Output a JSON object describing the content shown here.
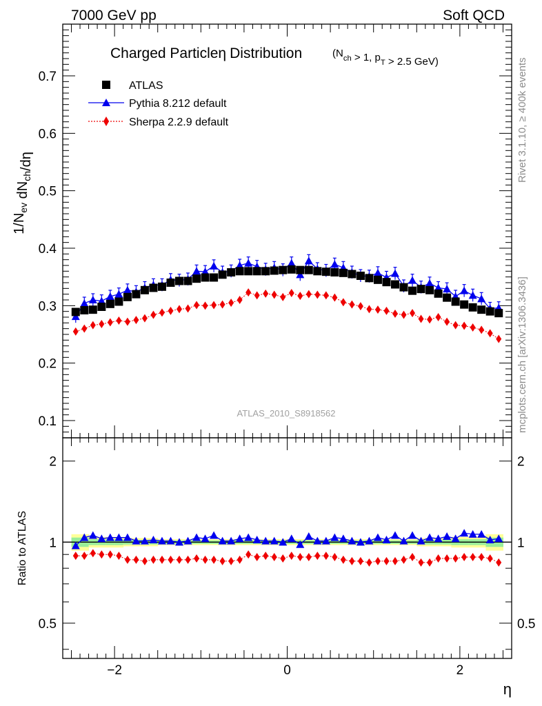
{
  "header": {
    "left": "7000 GeV pp",
    "right": "Soft QCD"
  },
  "side_labels": {
    "rivet": "Rivet 3.1.10, ≥ 400k events",
    "mcplots": "mcplots.cern.ch [arXiv:1306.3436]"
  },
  "chart_data": {
    "type": "scatter",
    "title_main": "Charged Particle",
    "title_eta": "η",
    "title_rest": "Distribution",
    "title_cond": "(N_ch > 1, p_T > 2.5 GeV)",
    "watermark": "ATLAS_2010_S8918562",
    "xlabel": "η",
    "ylabel": "1/N_ev dN_ch/dη",
    "ratio_ylabel": "Ratio to ATLAS",
    "xlim": [
      -2.6,
      2.6
    ],
    "ylim": [
      0.07,
      0.79
    ],
    "ratio_ylim": [
      0.37,
      2.44
    ],
    "x_ticks": [
      "−2",
      "0",
      "2"
    ],
    "y_ticks": [
      "0.1",
      "0.2",
      "0.3",
      "0.4",
      "0.5",
      "0.6",
      "0.7"
    ],
    "ratio_ticks": [
      "0.5",
      "1",
      "2"
    ],
    "legend_position": "top-left",
    "legend": [
      "ATLAS",
      "Pythia 8.212 default",
      "Sherpa 2.2.9 default"
    ],
    "x": [
      -2.45,
      -2.35,
      -2.25,
      -2.15,
      -2.05,
      -1.95,
      -1.85,
      -1.75,
      -1.65,
      -1.55,
      -1.45,
      -1.35,
      -1.25,
      -1.15,
      -1.05,
      -0.95,
      -0.85,
      -0.75,
      -0.65,
      -0.55,
      -0.45,
      -0.35,
      -0.25,
      -0.15,
      -0.05,
      0.05,
      0.15,
      0.25,
      0.35,
      0.45,
      0.55,
      0.65,
      0.75,
      0.85,
      0.95,
      1.05,
      1.15,
      1.25,
      1.35,
      1.45,
      1.55,
      1.65,
      1.75,
      1.85,
      1.95,
      2.05,
      2.15,
      2.25,
      2.35,
      2.45
    ],
    "series": [
      {
        "name": "ATLAS",
        "color": "#000000",
        "marker": "square",
        "values": [
          0.289,
          0.292,
          0.293,
          0.298,
          0.303,
          0.307,
          0.315,
          0.32,
          0.327,
          0.331,
          0.333,
          0.34,
          0.343,
          0.343,
          0.347,
          0.349,
          0.349,
          0.354,
          0.358,
          0.36,
          0.36,
          0.36,
          0.36,
          0.361,
          0.362,
          0.363,
          0.362,
          0.362,
          0.36,
          0.359,
          0.358,
          0.357,
          0.355,
          0.352,
          0.348,
          0.345,
          0.341,
          0.337,
          0.332,
          0.326,
          0.329,
          0.327,
          0.321,
          0.314,
          0.307,
          0.302,
          0.297,
          0.293,
          0.29,
          0.287
        ]
      },
      {
        "name": "Pythia 8.212 default",
        "color": "#0000ee",
        "marker": "triangle",
        "values": [
          0.281,
          0.304,
          0.31,
          0.308,
          0.316,
          0.32,
          0.327,
          0.324,
          0.331,
          0.336,
          0.336,
          0.345,
          0.344,
          0.346,
          0.36,
          0.359,
          0.369,
          0.358,
          0.36,
          0.37,
          0.374,
          0.368,
          0.363,
          0.366,
          0.362,
          0.374,
          0.354,
          0.378,
          0.364,
          0.361,
          0.372,
          0.366,
          0.358,
          0.352,
          0.351,
          0.357,
          0.349,
          0.356,
          0.334,
          0.344,
          0.332,
          0.339,
          0.331,
          0.329,
          0.316,
          0.326,
          0.318,
          0.312,
          0.295,
          0.296
        ]
      },
      {
        "name": "Sherpa 2.2.9 default",
        "color": "#ee0000",
        "marker": "diamond",
        "values": [
          0.255,
          0.26,
          0.266,
          0.268,
          0.271,
          0.274,
          0.272,
          0.275,
          0.278,
          0.284,
          0.288,
          0.291,
          0.294,
          0.295,
          0.301,
          0.3,
          0.301,
          0.302,
          0.305,
          0.31,
          0.323,
          0.318,
          0.321,
          0.319,
          0.315,
          0.322,
          0.317,
          0.32,
          0.319,
          0.318,
          0.314,
          0.306,
          0.302,
          0.299,
          0.294,
          0.293,
          0.291,
          0.286,
          0.284,
          0.287,
          0.277,
          0.276,
          0.28,
          0.272,
          0.266,
          0.265,
          0.262,
          0.258,
          0.252,
          0.242
        ]
      }
    ],
    "ratio_series": [
      {
        "name": "Pythia 8.212 default",
        "values": [
          0.97,
          1.04,
          1.06,
          1.03,
          1.04,
          1.04,
          1.04,
          1.01,
          1.01,
          1.02,
          1.01,
          1.01,
          1.0,
          1.01,
          1.04,
          1.03,
          1.06,
          1.01,
          1.01,
          1.03,
          1.04,
          1.02,
          1.01,
          1.01,
          1.0,
          1.03,
          0.98,
          1.05,
          1.01,
          1.01,
          1.04,
          1.03,
          1.01,
          1.0,
          1.01,
          1.04,
          1.02,
          1.06,
          1.01,
          1.06,
          1.01,
          1.04,
          1.03,
          1.05,
          1.03,
          1.08,
          1.07,
          1.07,
          1.02,
          1.03
        ]
      },
      {
        "name": "Sherpa 2.2.9 default",
        "values": [
          0.89,
          0.89,
          0.91,
          0.9,
          0.9,
          0.89,
          0.86,
          0.86,
          0.85,
          0.86,
          0.86,
          0.86,
          0.86,
          0.86,
          0.87,
          0.86,
          0.86,
          0.85,
          0.85,
          0.86,
          0.9,
          0.88,
          0.89,
          0.88,
          0.87,
          0.89,
          0.88,
          0.88,
          0.89,
          0.89,
          0.88,
          0.86,
          0.85,
          0.85,
          0.84,
          0.85,
          0.85,
          0.85,
          0.86,
          0.88,
          0.84,
          0.84,
          0.87,
          0.87,
          0.87,
          0.88,
          0.88,
          0.88,
          0.87,
          0.84
        ]
      }
    ],
    "ratio_bands": {
      "green_halfwidth": [
        0.04,
        0.04,
        0.025,
        0.025,
        0.025,
        0.025,
        0.02,
        0.02,
        0.02,
        0.02,
        0.015,
        0.015,
        0.015,
        0.015,
        0.015,
        0.015,
        0.015,
        0.015,
        0.015,
        0.015,
        0.015,
        0.015,
        0.015,
        0.015,
        0.015,
        0.015,
        0.015,
        0.015,
        0.015,
        0.015,
        0.015,
        0.015,
        0.015,
        0.015,
        0.015,
        0.015,
        0.015,
        0.015,
        0.015,
        0.015,
        0.02,
        0.02,
        0.02,
        0.02,
        0.025,
        0.025,
        0.025,
        0.025,
        0.04,
        0.04
      ],
      "yellow_halfwidth": [
        0.07,
        0.07,
        0.045,
        0.045,
        0.045,
        0.045,
        0.035,
        0.035,
        0.035,
        0.035,
        0.025,
        0.025,
        0.025,
        0.025,
        0.025,
        0.025,
        0.025,
        0.025,
        0.025,
        0.025,
        0.025,
        0.025,
        0.025,
        0.025,
        0.025,
        0.025,
        0.025,
        0.025,
        0.025,
        0.025,
        0.025,
        0.025,
        0.025,
        0.025,
        0.025,
        0.025,
        0.025,
        0.025,
        0.025,
        0.025,
        0.035,
        0.035,
        0.035,
        0.035,
        0.045,
        0.045,
        0.045,
        0.045,
        0.07,
        0.07
      ]
    }
  }
}
